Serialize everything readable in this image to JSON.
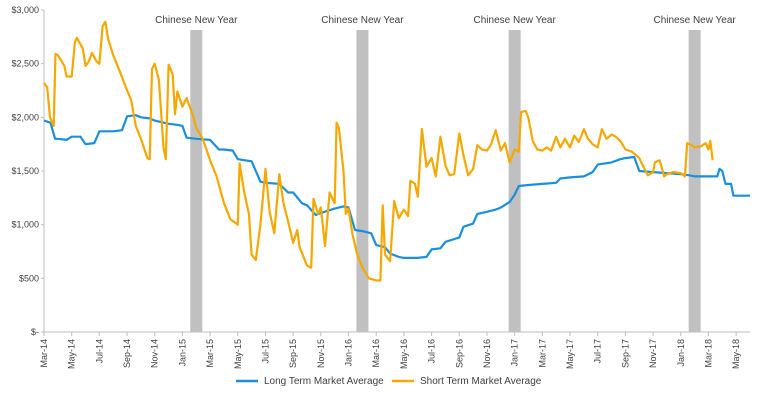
{
  "chart_data": {
    "type": "line",
    "title": "",
    "xlabel": "",
    "ylabel": "",
    "ylim": [
      0,
      3000
    ],
    "y_ticks": [
      {
        "value": 0,
        "label": "$-"
      },
      {
        "value": 500,
        "label": "$500"
      },
      {
        "value": 1000,
        "label": "$1,000"
      },
      {
        "value": 1500,
        "label": "$1,500"
      },
      {
        "value": 2000,
        "label": "$2,000"
      },
      {
        "value": 2500,
        "label": "$2,500"
      },
      {
        "value": 3000,
        "label": "$3,000"
      }
    ],
    "x_range": [
      "2014-03",
      "2018-06"
    ],
    "x_ticks": [
      "Mar-14",
      "May-14",
      "Jul-14",
      "Sep-14",
      "Nov-14",
      "Jan-15",
      "Mar-15",
      "May-15",
      "Jul-15",
      "Sep-15",
      "Nov-15",
      "Jan-16",
      "Mar-16",
      "May-16",
      "Jul-16",
      "Sep-16",
      "Nov-16",
      "Jan-17",
      "Mar-17",
      "May-17",
      "Jul-17",
      "Sep-17",
      "Nov-17",
      "Jan-18",
      "Mar-18",
      "May-18"
    ],
    "grid": false,
    "legend_position": "bottom",
    "annotations": [
      {
        "label": "Chinese New Year",
        "x": "2015-02"
      },
      {
        "label": "Chinese New Year",
        "x": "2016-02"
      },
      {
        "label": "Chinese New Year",
        "x": "2017-01"
      },
      {
        "label": "Chinese New Year",
        "x": "2018-02"
      }
    ],
    "series": [
      {
        "name": "Long Term Market Average",
        "color": "#1a8fdc",
        "points": [
          [
            "2014-03",
            1970
          ],
          [
            "2014-03-15",
            1950
          ],
          [
            "2014-03-25",
            1800
          ],
          [
            "2014-04",
            1800
          ],
          [
            "2014-04-20",
            1790
          ],
          [
            "2014-05",
            1820
          ],
          [
            "2014-05-20",
            1820
          ],
          [
            "2014-06",
            1750
          ],
          [
            "2014-06-20",
            1760
          ],
          [
            "2014-07",
            1870
          ],
          [
            "2014-08",
            1870
          ],
          [
            "2014-08-20",
            1880
          ],
          [
            "2014-09",
            2010
          ],
          [
            "2014-09-20",
            2020
          ],
          [
            "2014-10",
            2000
          ],
          [
            "2014-10-20",
            1990
          ],
          [
            "2014-11",
            1970
          ],
          [
            "2014-12",
            1940
          ],
          [
            "2014-12-20",
            1930
          ],
          [
            "2015-01",
            1920
          ],
          [
            "2015-01-10",
            1810
          ],
          [
            "2015-02",
            1800
          ],
          [
            "2015-03",
            1790
          ],
          [
            "2015-03-20",
            1700
          ],
          [
            "2015-04",
            1700
          ],
          [
            "2015-04-20",
            1690
          ],
          [
            "2015-05",
            1610
          ],
          [
            "2015-06",
            1590
          ],
          [
            "2015-06-10",
            1500
          ],
          [
            "2015-06-20",
            1400
          ],
          [
            "2015-07",
            1390
          ],
          [
            "2015-08",
            1380
          ],
          [
            "2015-08-20",
            1300
          ],
          [
            "2015-09",
            1300
          ],
          [
            "2015-09-20",
            1200
          ],
          [
            "2015-10",
            1180
          ],
          [
            "2015-10-20",
            1090
          ],
          [
            "2015-11",
            1110
          ],
          [
            "2015-12",
            1150
          ],
          [
            "2015-12-20",
            1170
          ],
          [
            "2016-01",
            1160
          ],
          [
            "2016-01-15",
            950
          ],
          [
            "2016-02",
            940
          ],
          [
            "2016-02-20",
            920
          ],
          [
            "2016-03",
            810
          ],
          [
            "2016-03-20",
            790
          ],
          [
            "2016-04",
            730
          ],
          [
            "2016-04-20",
            700
          ],
          [
            "2016-05",
            690
          ],
          [
            "2016-06",
            690
          ],
          [
            "2016-06-20",
            700
          ],
          [
            "2016-07",
            770
          ],
          [
            "2016-07-20",
            780
          ],
          [
            "2016-08",
            840
          ],
          [
            "2016-09",
            880
          ],
          [
            "2016-09-10",
            980
          ],
          [
            "2016-10",
            1010
          ],
          [
            "2016-10-10",
            1100
          ],
          [
            "2016-11",
            1120
          ],
          [
            "2016-11-20",
            1140
          ],
          [
            "2016-12",
            1160
          ],
          [
            "2016-12-20",
            1210
          ],
          [
            "2017-01",
            1280
          ],
          [
            "2017-01-10",
            1360
          ],
          [
            "2017-02",
            1370
          ],
          [
            "2017-03",
            1380
          ],
          [
            "2017-04",
            1390
          ],
          [
            "2017-04-10",
            1430
          ],
          [
            "2017-05",
            1440
          ],
          [
            "2017-06",
            1450
          ],
          [
            "2017-06-20",
            1490
          ],
          [
            "2017-07",
            1560
          ],
          [
            "2017-08",
            1580
          ],
          [
            "2017-08-20",
            1610
          ],
          [
            "2017-09",
            1620
          ],
          [
            "2017-09-20",
            1630
          ],
          [
            "2017-10",
            1500
          ],
          [
            "2017-11",
            1490
          ],
          [
            "2017-12",
            1480
          ],
          [
            "2018-01",
            1470
          ],
          [
            "2018-01-20",
            1460
          ],
          [
            "2018-02",
            1450
          ],
          [
            "2018-03",
            1450
          ],
          [
            "2018-03-20",
            1450
          ],
          [
            "2018-03-25",
            1520
          ],
          [
            "2018-04",
            1500
          ],
          [
            "2018-04-08",
            1380
          ],
          [
            "2018-04-20",
            1380
          ],
          [
            "2018-04-25",
            1270
          ],
          [
            "2018-05",
            1270
          ],
          [
            "2018-06",
            1270
          ]
        ]
      },
      {
        "name": "Short Term Market Average",
        "color": "#f5a800",
        "points": [
          [
            "2014-03",
            2320
          ],
          [
            "2014-03-08",
            2280
          ],
          [
            "2014-03-14",
            2000
          ],
          [
            "2014-03-22",
            1920
          ],
          [
            "2014-03-26",
            2590
          ],
          [
            "2014-04",
            2580
          ],
          [
            "2014-04-15",
            2480
          ],
          [
            "2014-04-20",
            2380
          ],
          [
            "2014-05",
            2380
          ],
          [
            "2014-05-08",
            2700
          ],
          [
            "2014-05-12",
            2740
          ],
          [
            "2014-05-25",
            2640
          ],
          [
            "2014-06",
            2480
          ],
          [
            "2014-06-08",
            2520
          ],
          [
            "2014-06-15",
            2600
          ],
          [
            "2014-06-25",
            2520
          ],
          [
            "2014-07",
            2500
          ],
          [
            "2014-07-08",
            2850
          ],
          [
            "2014-07-14",
            2890
          ],
          [
            "2014-07-20",
            2730
          ],
          [
            "2014-08",
            2580
          ],
          [
            "2014-08-15",
            2430
          ],
          [
            "2014-09",
            2250
          ],
          [
            "2014-09-10",
            2160
          ],
          [
            "2014-09-20",
            1920
          ],
          [
            "2014-10",
            1800
          ],
          [
            "2014-10-15",
            1620
          ],
          [
            "2014-10-20",
            1610
          ],
          [
            "2014-10-25",
            2450
          ],
          [
            "2014-11",
            2500
          ],
          [
            "2014-11-10",
            2350
          ],
          [
            "2014-11-20",
            1720
          ],
          [
            "2014-11-25",
            1610
          ],
          [
            "2014-12",
            2490
          ],
          [
            "2014-12-10",
            2400
          ],
          [
            "2014-12-15",
            2030
          ],
          [
            "2014-12-20",
            2240
          ],
          [
            "2015-01",
            2100
          ],
          [
            "2015-01-10",
            2180
          ],
          [
            "2015-01-25",
            2000
          ],
          [
            "2015-02",
            1900
          ],
          [
            "2015-02-15",
            1800
          ],
          [
            "2015-03",
            1600
          ],
          [
            "2015-03-15",
            1450
          ],
          [
            "2015-04",
            1200
          ],
          [
            "2015-04-15",
            1050
          ],
          [
            "2015-05",
            1000
          ],
          [
            "2015-05-05",
            1570
          ],
          [
            "2015-05-15",
            1300
          ],
          [
            "2015-05-25",
            1100
          ],
          [
            "2015-06",
            720
          ],
          [
            "2015-06-10",
            670
          ],
          [
            "2015-06-20",
            1000
          ],
          [
            "2015-07",
            1520
          ],
          [
            "2015-07-10",
            1120
          ],
          [
            "2015-07-20",
            920
          ],
          [
            "2015-08",
            1470
          ],
          [
            "2015-08-10",
            1200
          ],
          [
            "2015-08-20",
            1030
          ],
          [
            "2015-09",
            830
          ],
          [
            "2015-09-10",
            950
          ],
          [
            "2015-09-15",
            790
          ],
          [
            "2015-10",
            620
          ],
          [
            "2015-10-10",
            600
          ],
          [
            "2015-10-15",
            1240
          ],
          [
            "2015-10-25",
            1100
          ],
          [
            "2015-11",
            1160
          ],
          [
            "2015-11-10",
            800
          ],
          [
            "2015-11-20",
            1300
          ],
          [
            "2015-12",
            1200
          ],
          [
            "2015-12-05",
            1950
          ],
          [
            "2015-12-10",
            1900
          ],
          [
            "2015-12-20",
            1500
          ],
          [
            "2015-12-25",
            1100
          ],
          [
            "2016-01",
            1150
          ],
          [
            "2016-01-10",
            900
          ],
          [
            "2016-01-20",
            720
          ],
          [
            "2016-02",
            600
          ],
          [
            "2016-02-15",
            500
          ],
          [
            "2016-03",
            480
          ],
          [
            "2016-03-10",
            480
          ],
          [
            "2016-03-15",
            1180
          ],
          [
            "2016-03-20",
            720
          ],
          [
            "2016-04",
            660
          ],
          [
            "2016-04-10",
            1220
          ],
          [
            "2016-04-20",
            1060
          ],
          [
            "2016-05",
            1140
          ],
          [
            "2016-05-10",
            1080
          ],
          [
            "2016-05-15",
            1410
          ],
          [
            "2016-05-25",
            1380
          ],
          [
            "2016-06",
            1260
          ],
          [
            "2016-06-10",
            1890
          ],
          [
            "2016-06-20",
            1540
          ],
          [
            "2016-07",
            1620
          ],
          [
            "2016-07-10",
            1450
          ],
          [
            "2016-07-20",
            1820
          ],
          [
            "2016-08",
            1550
          ],
          [
            "2016-08-10",
            1460
          ],
          [
            "2016-08-20",
            1470
          ],
          [
            "2016-09",
            1850
          ],
          [
            "2016-09-10",
            1650
          ],
          [
            "2016-09-20",
            1460
          ],
          [
            "2016-10",
            1520
          ],
          [
            "2016-10-10",
            1740
          ],
          [
            "2016-10-20",
            1700
          ],
          [
            "2016-11",
            1690
          ],
          [
            "2016-11-10",
            1750
          ],
          [
            "2016-11-20",
            1880
          ],
          [
            "2016-12",
            1690
          ],
          [
            "2016-12-10",
            1760
          ],
          [
            "2016-12-20",
            1580
          ],
          [
            "2017-01",
            1700
          ],
          [
            "2017-01-10",
            1680
          ],
          [
            "2017-01-15",
            2050
          ],
          [
            "2017-01-25",
            2060
          ],
          [
            "2017-02",
            1990
          ],
          [
            "2017-02-10",
            1780
          ],
          [
            "2017-02-20",
            1700
          ],
          [
            "2017-03",
            1690
          ],
          [
            "2017-03-10",
            1720
          ],
          [
            "2017-03-20",
            1690
          ],
          [
            "2017-04",
            1820
          ],
          [
            "2017-04-10",
            1720
          ],
          [
            "2017-04-20",
            1800
          ],
          [
            "2017-05",
            1720
          ],
          [
            "2017-05-10",
            1830
          ],
          [
            "2017-05-20",
            1770
          ],
          [
            "2017-06",
            1890
          ],
          [
            "2017-06-10",
            1800
          ],
          [
            "2017-06-20",
            1750
          ],
          [
            "2017-07",
            1720
          ],
          [
            "2017-07-10",
            1890
          ],
          [
            "2017-07-20",
            1800
          ],
          [
            "2017-08",
            1840
          ],
          [
            "2017-08-10",
            1820
          ],
          [
            "2017-08-20",
            1780
          ],
          [
            "2017-09",
            1700
          ],
          [
            "2017-09-15",
            1680
          ],
          [
            "2017-10",
            1620
          ],
          [
            "2017-10-10",
            1540
          ],
          [
            "2017-10-20",
            1460
          ],
          [
            "2017-11",
            1490
          ],
          [
            "2017-11-05",
            1580
          ],
          [
            "2017-11-15",
            1600
          ],
          [
            "2017-11-25",
            1450
          ],
          [
            "2017-12",
            1470
          ],
          [
            "2017-12-15",
            1490
          ],
          [
            "2018-01",
            1480
          ],
          [
            "2018-01-10",
            1450
          ],
          [
            "2018-01-15",
            1760
          ],
          [
            "2018-01-25",
            1740
          ],
          [
            "2018-02",
            1720
          ],
          [
            "2018-02-15",
            1730
          ],
          [
            "2018-02-25",
            1760
          ],
          [
            "2018-03",
            1700
          ],
          [
            "2018-03-05",
            1780
          ],
          [
            "2018-03-10",
            1600
          ]
        ]
      }
    ]
  }
}
